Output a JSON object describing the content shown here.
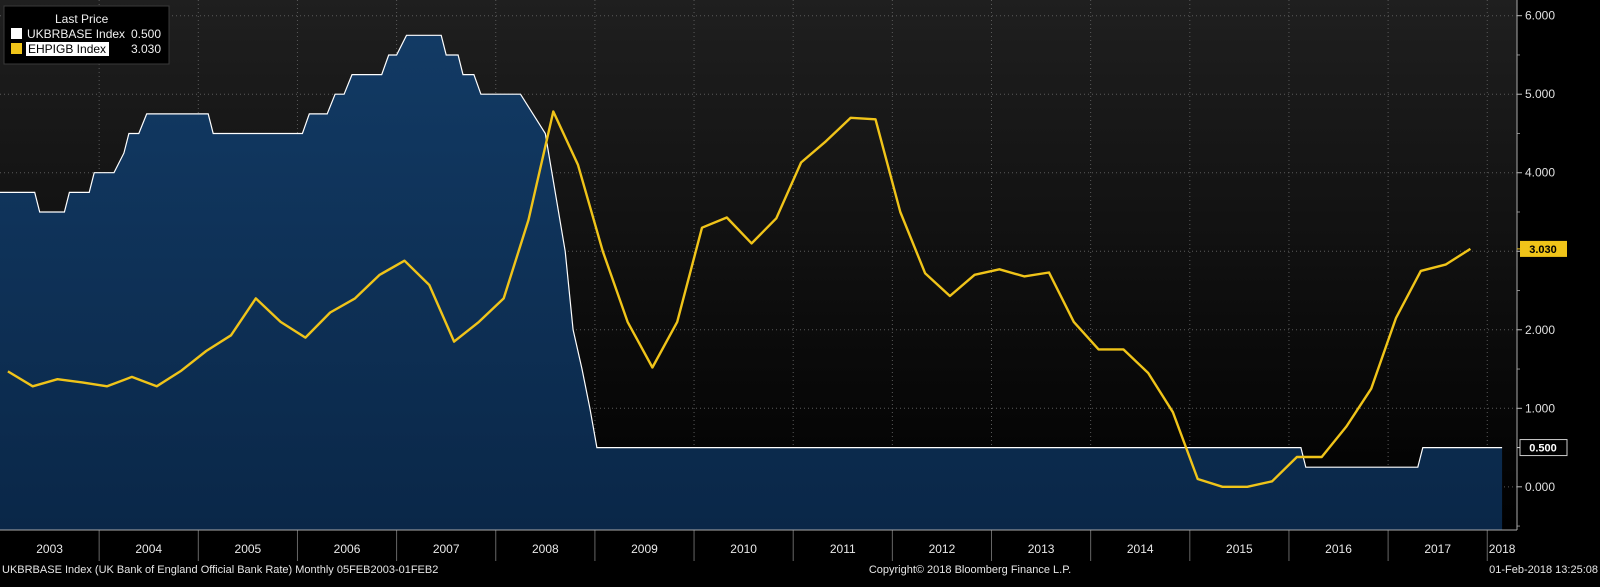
{
  "legend": {
    "title": "Last Price",
    "entries": [
      {
        "label": "UKBRBASE Index",
        "value": "0.500",
        "color": "#ffffff"
      },
      {
        "label": "EHPIGB Index",
        "value": "3.030",
        "color": "#f0c419"
      }
    ]
  },
  "footer": {
    "left": "UKBRBASE Index (UK Bank of England Official Bank Rate)  Monthly 05FEB2003-01FEB2",
    "center": "Copyright© 2018 Bloomberg Finance L.P.",
    "right": "01-Feb-2018 13:25:08"
  },
  "tags": [
    {
      "label": "3.030",
      "value": 3.03,
      "bg": "#f0c419",
      "fg": "#000000"
    },
    {
      "label": "0.500",
      "value": 0.5,
      "bg": "#000000",
      "fg": "#ffffff"
    }
  ],
  "chart_data": {
    "type": "line",
    "ylim": [
      -0.55,
      6.2
    ],
    "xlim": [
      2003.0,
      2018.3
    ],
    "grid": true,
    "y_ticks": [
      0,
      1,
      2,
      3,
      4,
      5,
      6
    ],
    "y_tick_labels": [
      "0.000",
      "1.000",
      "2.000",
      "3.000",
      "4.000",
      "5.000",
      "6.000"
    ],
    "x_ticks": [
      2003,
      2004,
      2005,
      2006,
      2007,
      2008,
      2009,
      2010,
      2011,
      2012,
      2013,
      2014,
      2015,
      2016,
      2017,
      2018
    ],
    "x_tick_labels": [
      "2003",
      "2004",
      "2005",
      "2006",
      "2007",
      "2008",
      "2009",
      "2010",
      "2011",
      "2012",
      "2013",
      "2014",
      "2015",
      "2016",
      "2017",
      "2018"
    ],
    "series": [
      {
        "name": "UKBRBASE Index",
        "style": "area-step",
        "color": "#ffffff",
        "fill_top": "#123a64",
        "fill_bottom": "#0a2748",
        "points": [
          [
            2003.0,
            3.75
          ],
          [
            2003.35,
            3.75
          ],
          [
            2003.4,
            3.5
          ],
          [
            2003.65,
            3.5
          ],
          [
            2003.7,
            3.75
          ],
          [
            2003.9,
            3.75
          ],
          [
            2003.95,
            4.0
          ],
          [
            2004.15,
            4.0
          ],
          [
            2004.25,
            4.25
          ],
          [
            2004.3,
            4.5
          ],
          [
            2004.4,
            4.5
          ],
          [
            2004.48,
            4.75
          ],
          [
            2005.1,
            4.75
          ],
          [
            2005.15,
            4.5
          ],
          [
            2006.05,
            4.5
          ],
          [
            2006.12,
            4.75
          ],
          [
            2006.3,
            4.75
          ],
          [
            2006.38,
            5.0
          ],
          [
            2006.47,
            5.0
          ],
          [
            2006.55,
            5.25
          ],
          [
            2006.85,
            5.25
          ],
          [
            2006.92,
            5.5
          ],
          [
            2007.0,
            5.5
          ],
          [
            2007.1,
            5.75
          ],
          [
            2007.45,
            5.75
          ],
          [
            2007.5,
            5.5
          ],
          [
            2007.62,
            5.5
          ],
          [
            2007.67,
            5.25
          ],
          [
            2007.78,
            5.25
          ],
          [
            2007.85,
            5.0
          ],
          [
            2008.25,
            5.0
          ],
          [
            2008.5,
            4.5
          ],
          [
            2008.7,
            3.0
          ],
          [
            2008.78,
            2.0
          ],
          [
            2008.87,
            1.5
          ],
          [
            2008.95,
            1.0
          ],
          [
            2009.02,
            0.5
          ],
          [
            2016.12,
            0.5
          ],
          [
            2016.17,
            0.25
          ],
          [
            2017.3,
            0.25
          ],
          [
            2017.35,
            0.5
          ],
          [
            2018.15,
            0.5
          ]
        ]
      },
      {
        "name": "EHPIGB Index",
        "style": "line",
        "color": "#f0c419",
        "points": [
          [
            2003.08,
            1.47
          ],
          [
            2003.33,
            1.28
          ],
          [
            2003.58,
            1.37
          ],
          [
            2003.83,
            1.33
          ],
          [
            2004.08,
            1.28
          ],
          [
            2004.33,
            1.4
          ],
          [
            2004.58,
            1.28
          ],
          [
            2004.83,
            1.48
          ],
          [
            2005.08,
            1.73
          ],
          [
            2005.33,
            1.93
          ],
          [
            2005.58,
            2.4
          ],
          [
            2005.83,
            2.1
          ],
          [
            2006.08,
            1.9
          ],
          [
            2006.33,
            2.22
          ],
          [
            2006.58,
            2.4
          ],
          [
            2006.83,
            2.7
          ],
          [
            2007.08,
            2.88
          ],
          [
            2007.33,
            2.57
          ],
          [
            2007.58,
            1.85
          ],
          [
            2007.83,
            2.1
          ],
          [
            2008.08,
            2.4
          ],
          [
            2008.33,
            3.4
          ],
          [
            2008.58,
            4.78
          ],
          [
            2008.83,
            4.1
          ],
          [
            2009.08,
            3.0
          ],
          [
            2009.33,
            2.1
          ],
          [
            2009.58,
            1.52
          ],
          [
            2009.83,
            2.1
          ],
          [
            2010.08,
            3.3
          ],
          [
            2010.33,
            3.43
          ],
          [
            2010.58,
            3.1
          ],
          [
            2010.83,
            3.42
          ],
          [
            2011.08,
            4.13
          ],
          [
            2011.33,
            4.4
          ],
          [
            2011.58,
            4.7
          ],
          [
            2011.83,
            4.68
          ],
          [
            2012.08,
            3.5
          ],
          [
            2012.33,
            2.72
          ],
          [
            2012.58,
            2.43
          ],
          [
            2012.83,
            2.7
          ],
          [
            2013.08,
            2.77
          ],
          [
            2013.33,
            2.68
          ],
          [
            2013.58,
            2.73
          ],
          [
            2013.83,
            2.1
          ],
          [
            2014.08,
            1.75
          ],
          [
            2014.33,
            1.75
          ],
          [
            2014.58,
            1.45
          ],
          [
            2014.83,
            0.95
          ],
          [
            2015.08,
            0.1
          ],
          [
            2015.33,
            0.0
          ],
          [
            2015.58,
            0.0
          ],
          [
            2015.83,
            0.07
          ],
          [
            2016.08,
            0.38
          ],
          [
            2016.33,
            0.38
          ],
          [
            2016.58,
            0.77
          ],
          [
            2016.83,
            1.25
          ],
          [
            2017.08,
            2.15
          ],
          [
            2017.33,
            2.75
          ],
          [
            2017.58,
            2.83
          ],
          [
            2017.83,
            3.03
          ]
        ]
      }
    ]
  }
}
